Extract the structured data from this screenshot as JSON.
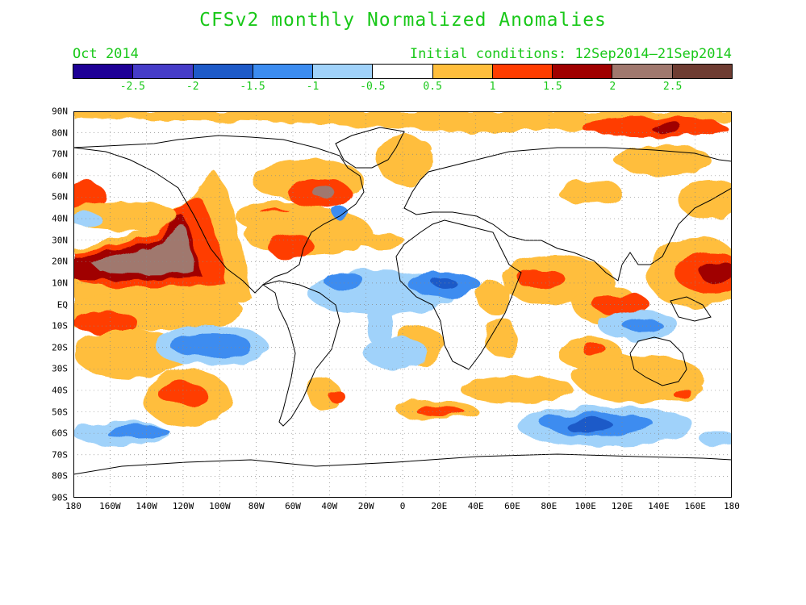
{
  "title": "CFSv2 monthly Normalized Anomalies",
  "month_label": "Oct 2014",
  "initial_conditions": "Initial conditions: 12Sep2014–21Sep2014",
  "colorbar": {
    "colors": [
      "#1e0096",
      "#463cc8",
      "#1e5ac8",
      "#3c8cf0",
      "#a0d2fa",
      "#ffffff",
      "#ffbe3c",
      "#ff3c00",
      "#a00000",
      "#a0786e",
      "#6e3c32"
    ],
    "labels": [
      "-2.5",
      "-2",
      "-1.5",
      "-1",
      "-0.5",
      "0.5",
      "1",
      "1.5",
      "2",
      "2.5"
    ]
  },
  "lat_labels": [
    "90N",
    "80N",
    "70N",
    "60N",
    "50N",
    "40N",
    "30N",
    "20N",
    "10N",
    "EQ",
    "10S",
    "20S",
    "30S",
    "40S",
    "50S",
    "60S",
    "70S",
    "80S",
    "90S"
  ],
  "lon_labels": [
    "180",
    "160W",
    "140W",
    "120W",
    "100W",
    "80W",
    "60W",
    "40W",
    "20W",
    "0",
    "20E",
    "40E",
    "60E",
    "80E",
    "100E",
    "120E",
    "140E",
    "160E",
    "180"
  ]
}
